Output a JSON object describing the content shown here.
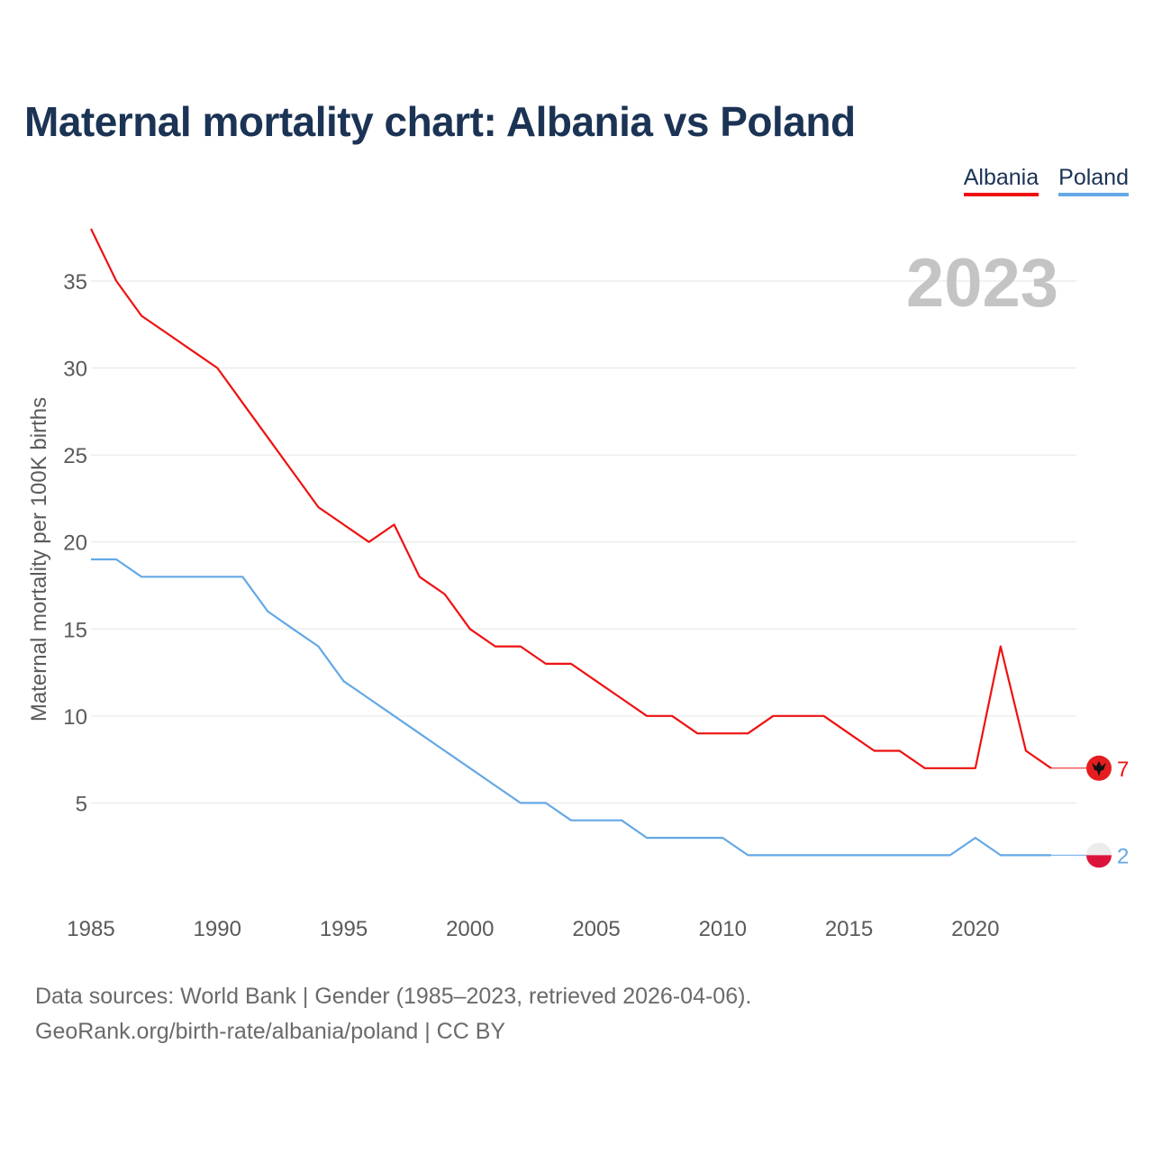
{
  "header": {
    "title": "Maternal mortality chart: Albania vs Poland"
  },
  "legend": [
    {
      "label": "Albania",
      "color": "#ee1111"
    },
    {
      "label": "Poland",
      "color": "#64a8e6"
    }
  ],
  "footer": {
    "line1": "Data sources: World Bank | Gender (1985–2023, retrieved 2026-04-06).",
    "line2": "GeoRank.org/birth-rate/albania/poland | CC BY"
  },
  "chart_data": {
    "type": "line",
    "title": "Maternal mortality chart: Albania vs Poland",
    "year_label": "2023",
    "xlabel": "",
    "ylabel": "Maternal mortality per 100K births",
    "xlim": [
      1985,
      2024
    ],
    "ylim": [
      0,
      38
    ],
    "x_ticks": [
      1985,
      1990,
      1995,
      2000,
      2005,
      2010,
      2015,
      2020
    ],
    "y_ticks": [
      5,
      10,
      15,
      20,
      25,
      30,
      35
    ],
    "grid": true,
    "x": [
      1985,
      1986,
      1987,
      1988,
      1989,
      1990,
      1991,
      1992,
      1993,
      1994,
      1995,
      1996,
      1997,
      1998,
      1999,
      2000,
      2001,
      2002,
      2003,
      2004,
      2005,
      2006,
      2007,
      2008,
      2009,
      2010,
      2011,
      2012,
      2013,
      2014,
      2015,
      2016,
      2017,
      2018,
      2019,
      2020,
      2021,
      2022,
      2023
    ],
    "series": [
      {
        "name": "Albania",
        "color": "#ee1111",
        "flag_icon": "albania-flag-icon",
        "end_label": "7",
        "values": [
          38,
          35,
          33,
          32,
          31,
          30,
          28,
          26,
          24,
          22,
          21,
          20,
          21,
          18,
          17,
          15,
          14,
          14,
          13,
          13,
          12,
          11,
          10,
          10,
          9,
          9,
          9,
          10,
          10,
          10,
          9,
          8,
          8,
          7,
          7,
          7,
          14,
          8,
          7
        ]
      },
      {
        "name": "Poland",
        "color": "#64a8e6",
        "flag_icon": "poland-flag-icon",
        "end_label": "2",
        "values": [
          19,
          19,
          18,
          18,
          18,
          18,
          18,
          16,
          15,
          14,
          12,
          11,
          10,
          9,
          8,
          7,
          6,
          5,
          5,
          4,
          4,
          4,
          3,
          3,
          3,
          3,
          2,
          2,
          2,
          2,
          2,
          2,
          2,
          2,
          2,
          3,
          2,
          2,
          2
        ]
      }
    ]
  }
}
